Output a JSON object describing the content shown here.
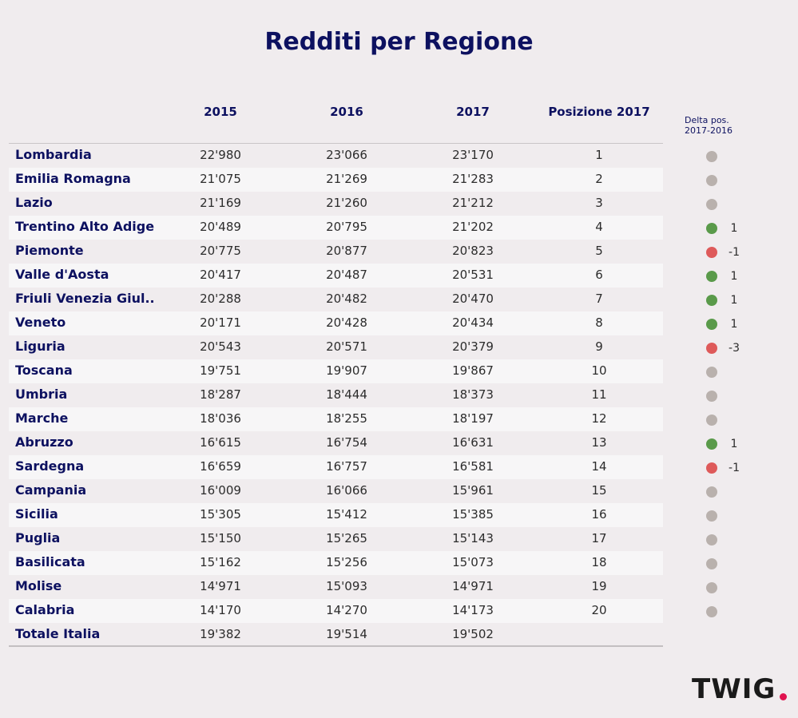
{
  "title": "Redditi per Regione",
  "chart_data": {
    "type": "table",
    "title": "Redditi per Regione",
    "columns": [
      "2015",
      "2016",
      "2017",
      "Posizione 2017"
    ],
    "delta_header": [
      "Delta pos.",
      "2017-2016"
    ],
    "rows": [
      {
        "region": "Lombardia",
        "y2015": "22'980",
        "y2016": "23'066",
        "y2017": "23'170",
        "pos": "1",
        "delta": ""
      },
      {
        "region": "Emilia Romagna",
        "y2015": "21'075",
        "y2016": "21'269",
        "y2017": "21'283",
        "pos": "2",
        "delta": ""
      },
      {
        "region": "Lazio",
        "y2015": "21'169",
        "y2016": "21'260",
        "y2017": "21'212",
        "pos": "3",
        "delta": ""
      },
      {
        "region": "Trentino Alto Adige",
        "y2015": "20'489",
        "y2016": "20'795",
        "y2017": "21'202",
        "pos": "4",
        "delta": "1"
      },
      {
        "region": "Piemonte",
        "y2015": "20'775",
        "y2016": "20'877",
        "y2017": "20'823",
        "pos": "5",
        "delta": "-1"
      },
      {
        "region": "Valle d'Aosta",
        "y2015": "20'417",
        "y2016": "20'487",
        "y2017": "20'531",
        "pos": "6",
        "delta": "1"
      },
      {
        "region": "Friuli Venezia Giul..",
        "y2015": "20'288",
        "y2016": "20'482",
        "y2017": "20'470",
        "pos": "7",
        "delta": "1"
      },
      {
        "region": "Veneto",
        "y2015": "20'171",
        "y2016": "20'428",
        "y2017": "20'434",
        "pos": "8",
        "delta": "1"
      },
      {
        "region": "Liguria",
        "y2015": "20'543",
        "y2016": "20'571",
        "y2017": "20'379",
        "pos": "9",
        "delta": "-3"
      },
      {
        "region": "Toscana",
        "y2015": "19'751",
        "y2016": "19'907",
        "y2017": "19'867",
        "pos": "10",
        "delta": ""
      },
      {
        "region": "Umbria",
        "y2015": "18'287",
        "y2016": "18'444",
        "y2017": "18'373",
        "pos": "11",
        "delta": ""
      },
      {
        "region": "Marche",
        "y2015": "18'036",
        "y2016": "18'255",
        "y2017": "18'197",
        "pos": "12",
        "delta": ""
      },
      {
        "region": "Abruzzo",
        "y2015": "16'615",
        "y2016": "16'754",
        "y2017": "16'631",
        "pos": "13",
        "delta": "1"
      },
      {
        "region": "Sardegna",
        "y2015": "16'659",
        "y2016": "16'757",
        "y2017": "16'581",
        "pos": "14",
        "delta": "-1"
      },
      {
        "region": "Campania",
        "y2015": "16'009",
        "y2016": "16'066",
        "y2017": "15'961",
        "pos": "15",
        "delta": ""
      },
      {
        "region": "Sicilia",
        "y2015": "15'305",
        "y2016": "15'412",
        "y2017": "15'385",
        "pos": "16",
        "delta": ""
      },
      {
        "region": "Puglia",
        "y2015": "15'150",
        "y2016": "15'265",
        "y2017": "15'143",
        "pos": "17",
        "delta": ""
      },
      {
        "region": "Basilicata",
        "y2015": "15'162",
        "y2016": "15'256",
        "y2017": "15'073",
        "pos": "18",
        "delta": ""
      },
      {
        "region": "Molise",
        "y2015": "14'971",
        "y2016": "15'093",
        "y2017": "14'971",
        "pos": "19",
        "delta": ""
      },
      {
        "region": "Calabria",
        "y2015": "14'170",
        "y2016": "14'270",
        "y2017": "14'173",
        "pos": "20",
        "delta": ""
      },
      {
        "region": "Totale Italia",
        "y2015": "19'382",
        "y2016": "19'514",
        "y2017": "19'502",
        "pos": "",
        "delta": null
      }
    ]
  },
  "colors": {
    "title": "#0d1160",
    "dot_up": "#5a9a4a",
    "dot_down": "#de5a5a",
    "dot_same": "#b9b1ad",
    "logo_dot": "#e0134f"
  },
  "logo": {
    "text": "TWIG"
  }
}
